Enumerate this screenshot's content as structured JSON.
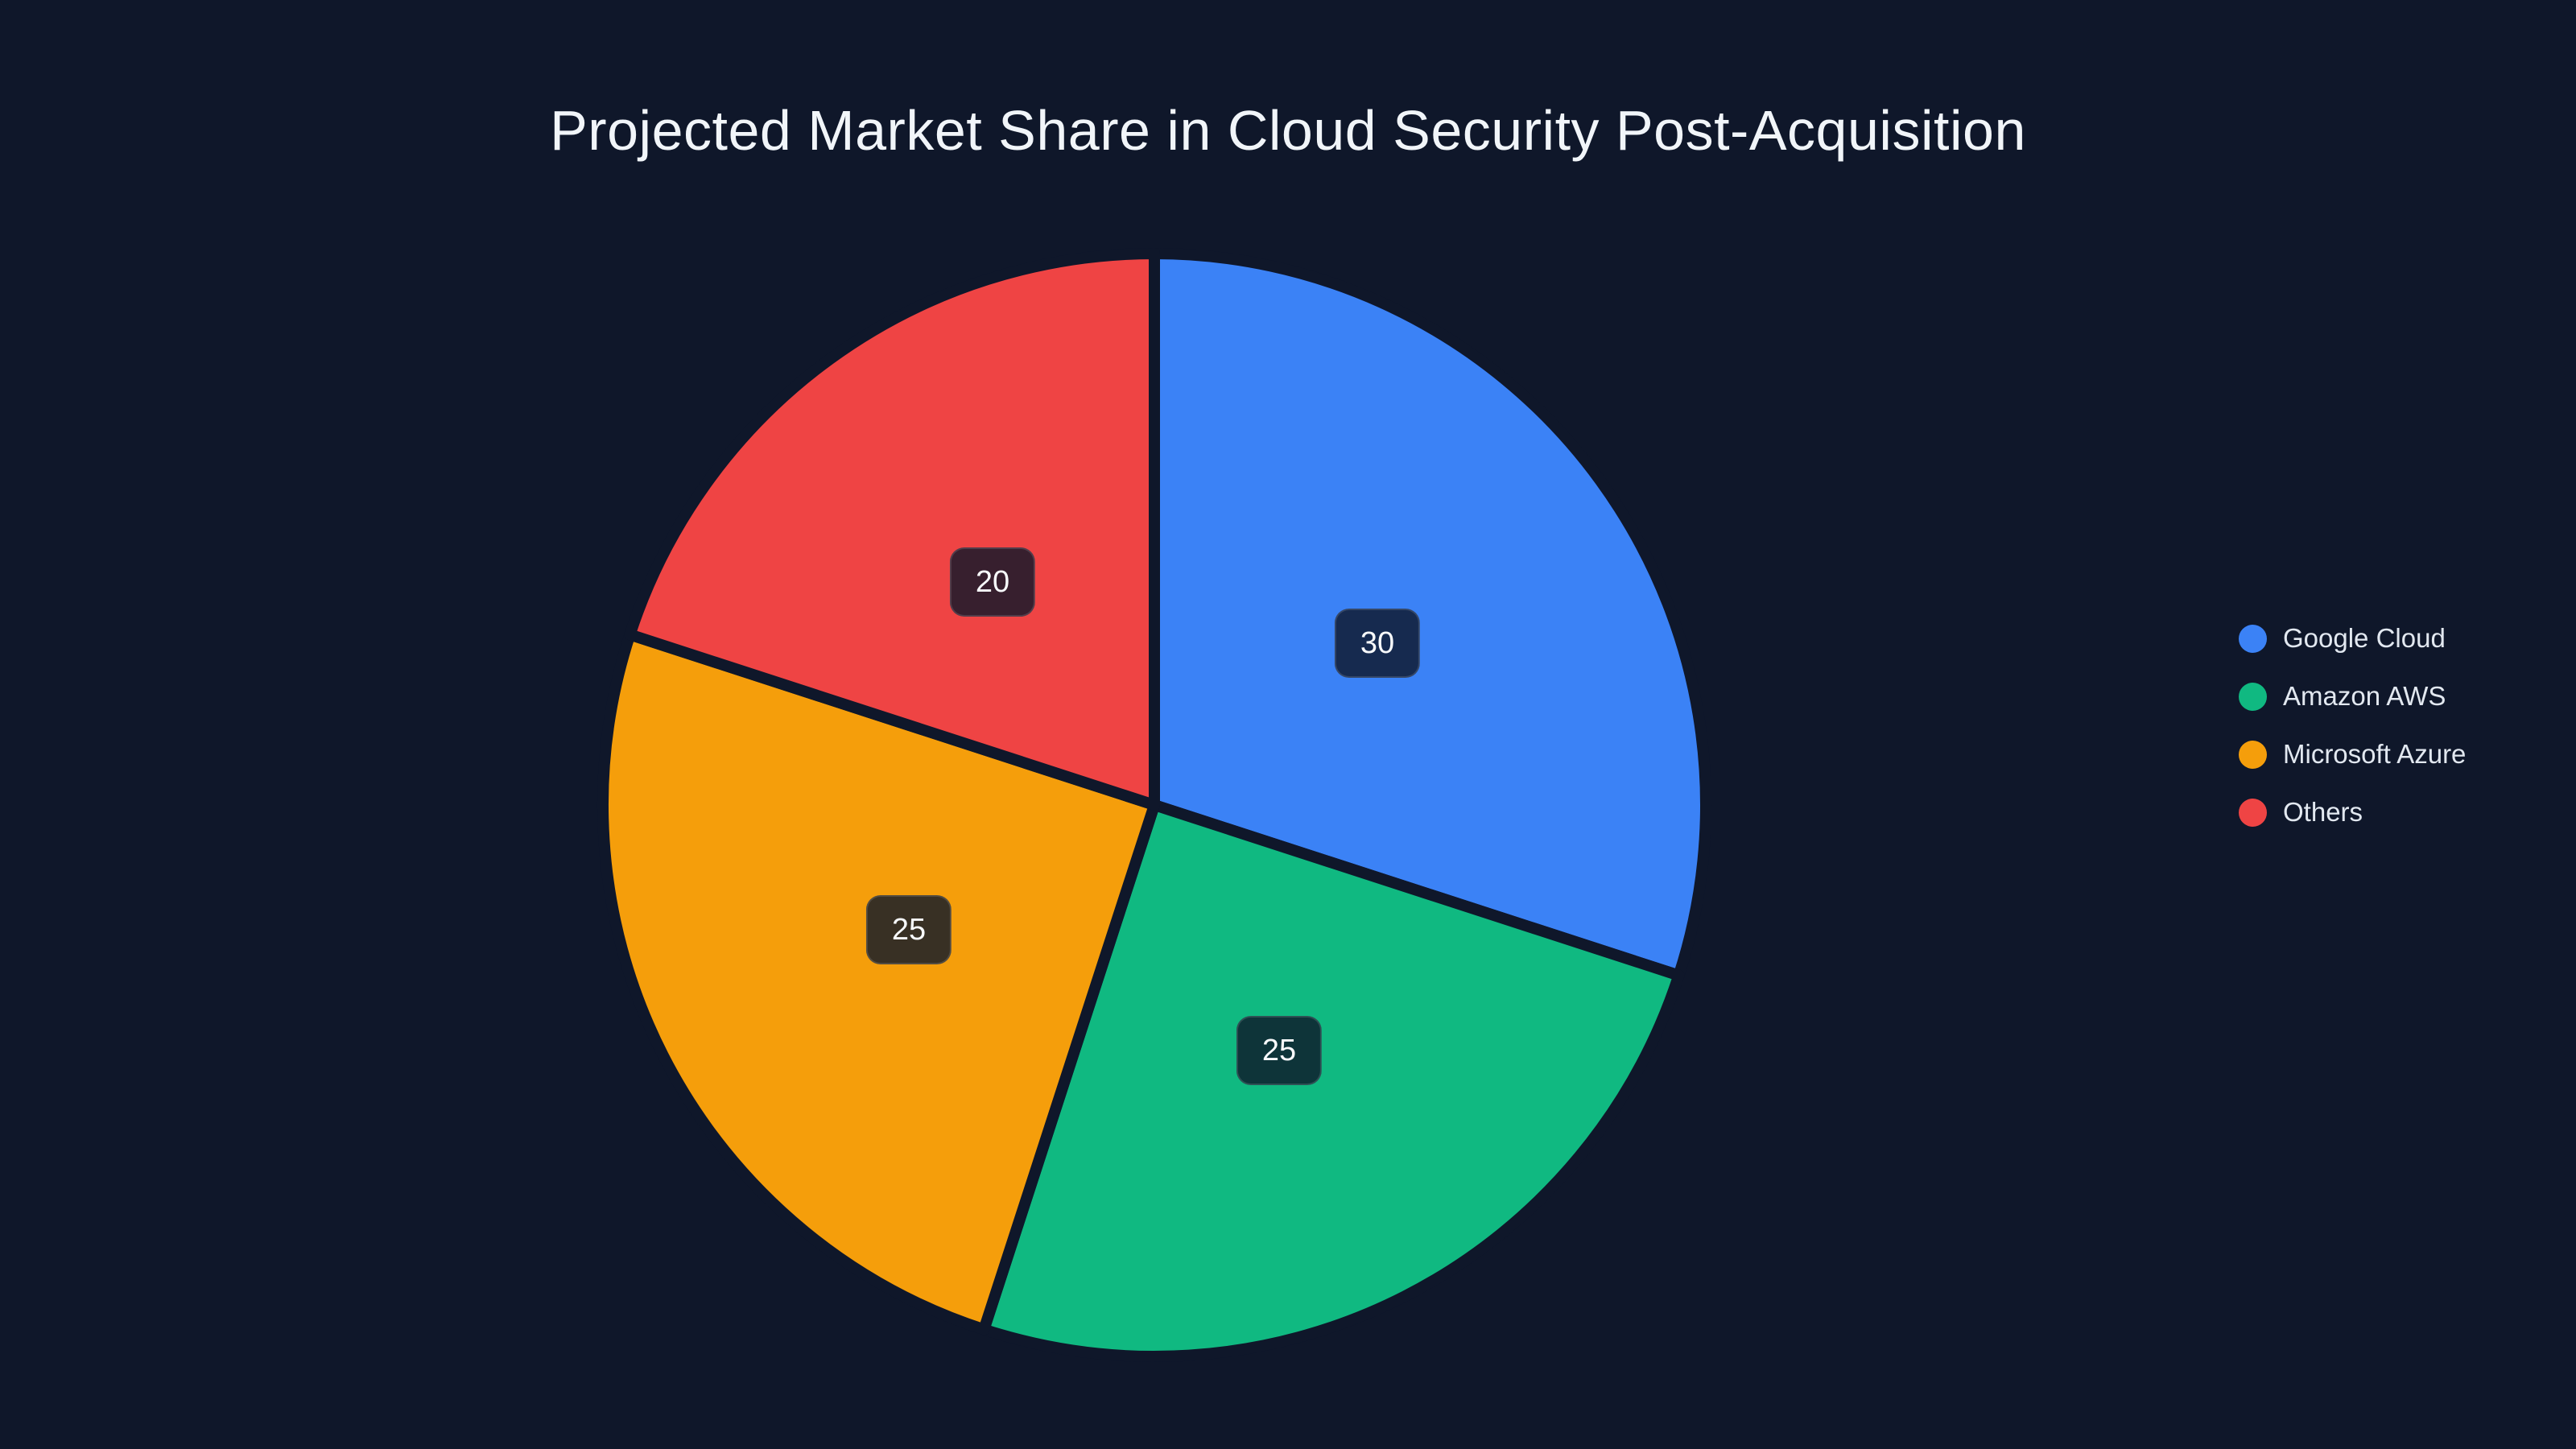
{
  "page": {
    "background_color": "#0f172a"
  },
  "chart_data": {
    "type": "pie",
    "title": "Projected Market Share in Cloud Security Post-Acquisition",
    "labels": [
      "Google Cloud",
      "Amazon AWS",
      "Microsoft Azure",
      "Others"
    ],
    "values": [
      30,
      25,
      25,
      20
    ],
    "value_labels": [
      "30",
      "25",
      "25",
      "20"
    ],
    "colors": [
      "#3b82f6",
      "#10b981",
      "#f59e0b",
      "#ef4444"
    ],
    "start_angle": "12-oclock",
    "direction": "clockwise",
    "slice_separator_color": "#0f172a",
    "label_box_background": "rgba(15,23,42,0.82)",
    "label_text_color": "#f8fafc",
    "title_color": "#f1f5f9",
    "legend_text_color": "#e2e8f0",
    "legend_position": "middle-right",
    "legend_marker": "circle"
  }
}
